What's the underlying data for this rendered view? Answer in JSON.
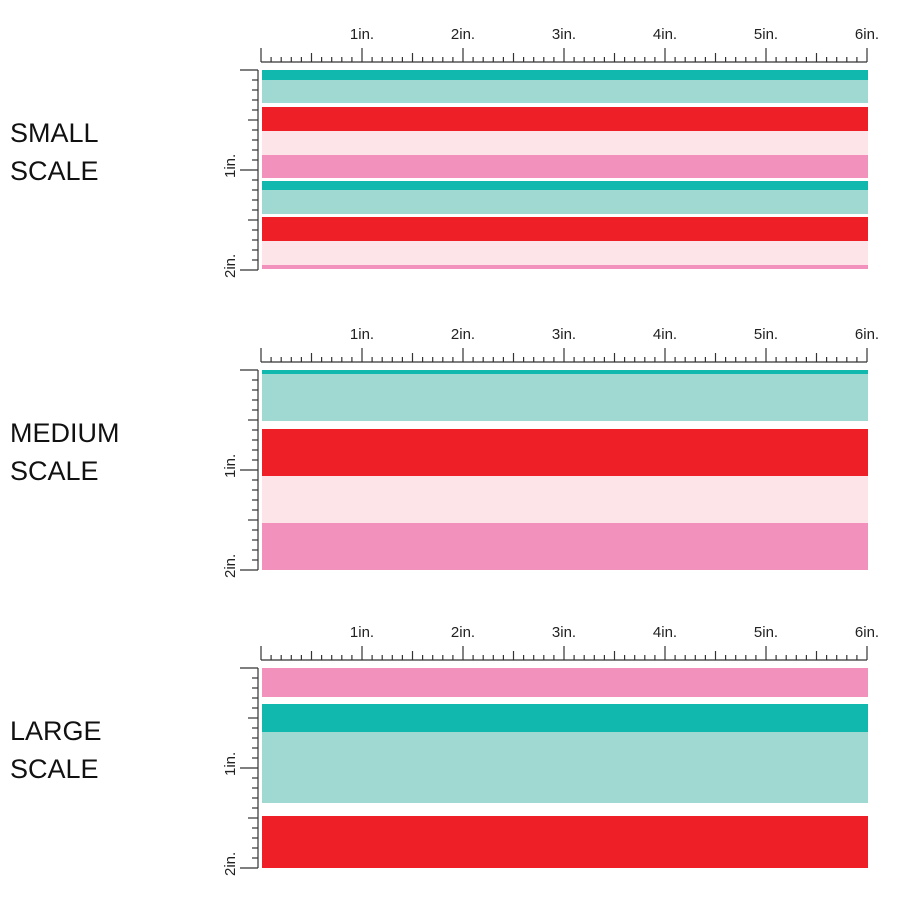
{
  "panels": [
    {
      "label": [
        "SMALL",
        "SCALE"
      ],
      "ruler_x": [
        "1in.",
        "2in.",
        "3in.",
        "4in.",
        "5in.",
        "6in."
      ],
      "ruler_y": [
        "1in.",
        "2in."
      ]
    },
    {
      "label": [
        "MEDIUM",
        "SCALE"
      ],
      "ruler_x": [
        "1in.",
        "2in.",
        "3in.",
        "4in.",
        "5in.",
        "6in."
      ],
      "ruler_y": [
        "1in.",
        "2in."
      ]
    },
    {
      "label": [
        "LARGE",
        "SCALE"
      ],
      "ruler_x": [
        "1in.",
        "2in.",
        "3in.",
        "4in.",
        "5in.",
        "6in."
      ],
      "ruler_y": [
        "1in.",
        "2in."
      ]
    }
  ]
}
